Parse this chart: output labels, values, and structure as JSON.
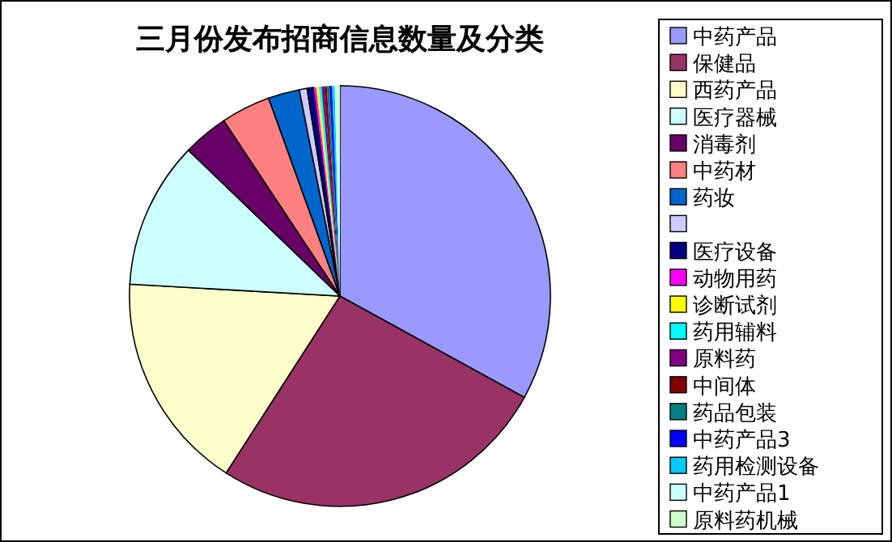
{
  "chart_data": {
    "type": "pie",
    "title": "三月份发布招商信息数量及分类",
    "categories": [
      "中药产品",
      "保健品",
      "西药产品",
      "医疗器械",
      "消毒剂",
      "中药材",
      "药妆",
      null,
      "医疗设备",
      "动物用药",
      "诊断试剂",
      "药用辅料",
      "原料药",
      "中间体",
      "药品包装",
      "中药产品3",
      "药用检测设备",
      "中药产品1",
      "原料药机械"
    ],
    "values": [
      33.0,
      26.1,
      16.8,
      11.3,
      3.5,
      3.8,
      2.4,
      0.6,
      0.5,
      0.2,
      0.2,
      0.2,
      0.2,
      0.2,
      0.2,
      0.2,
      0.2,
      0.2,
      0.2
    ],
    "colors": [
      "#9999ff",
      "#993366",
      "#ffffcc",
      "#ccffff",
      "#660066",
      "#ff8080",
      "#0066cc",
      "#ccccff",
      "#000080",
      "#ff00ff",
      "#ffff00",
      "#00ffff",
      "#800080",
      "#800000",
      "#008080",
      "#0000ff",
      "#00ccff",
      "#ccffff",
      "#ccffcc"
    ],
    "legend": "right"
  }
}
